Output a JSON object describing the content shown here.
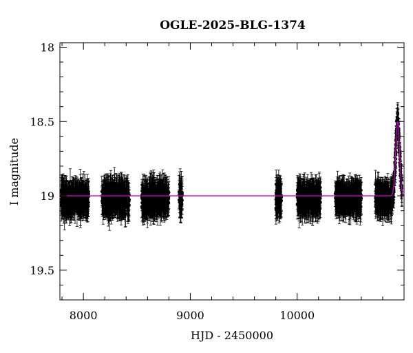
{
  "chart_data": {
    "type": "scatter",
    "title": "OGLE-2025-BLG-1374",
    "xlabel": "HJD - 2450000",
    "ylabel": "I magnitude",
    "xlim": [
      7780,
      11000
    ],
    "ylim": [
      19.7,
      17.97
    ],
    "y_inverted": true,
    "grid": false,
    "x_ticks": [
      8000,
      9000,
      10000
    ],
    "x_tick_labels": [
      "8000",
      "9000",
      "10000"
    ],
    "y_ticks": [
      18,
      18.5,
      19,
      19.5
    ],
    "y_tick_labels": [
      "18",
      "18.5",
      "19",
      "19.5"
    ],
    "baseline_mag": 19.0,
    "series": [
      {
        "kind": "points_with_errorbars",
        "color": "#000000",
        "observing_seasons": [
          {
            "x_range": [
              7790,
              8050
            ],
            "mag_mean": 19.02,
            "mag_scatter": 0.11,
            "err": 0.085
          },
          {
            "x_range": [
              8170,
              8430
            ],
            "mag_mean": 19.02,
            "mag_scatter": 0.11,
            "err": 0.085
          },
          {
            "x_range": [
              8545,
              8800
            ],
            "mag_mean": 19.02,
            "mag_scatter": 0.11,
            "err": 0.085
          },
          {
            "x_range": [
              8895,
              8925
            ],
            "mag_mean": 19.02,
            "mag_scatter": 0.12,
            "err": 0.09
          },
          {
            "x_range": [
              9800,
              9855
            ],
            "mag_mean": 19.02,
            "mag_scatter": 0.13,
            "err": 0.09
          },
          {
            "x_range": [
              10000,
              10220
            ],
            "mag_mean": 19.02,
            "mag_scatter": 0.1,
            "err": 0.085
          },
          {
            "x_range": [
              10355,
              10600
            ],
            "mag_mean": 19.02,
            "mag_scatter": 0.1,
            "err": 0.085
          },
          {
            "x_range": [
              10730,
              10885
            ],
            "mag_mean": 19.02,
            "mag_scatter": 0.1,
            "err": 0.085
          },
          {
            "x_range": [
              10885,
              10980
            ],
            "mag_mean": 19.0,
            "mag_scatter": 0.08,
            "err": 0.08
          }
        ],
        "event": {
          "t0": 10940,
          "peak_mag": 18.5,
          "width_days": 18
        }
      },
      {
        "kind": "model_curve",
        "color": "#cc00cc",
        "t0": 10940,
        "peak_mag": 18.5,
        "baseline_mag": 19.0,
        "width_days": 18
      }
    ]
  }
}
